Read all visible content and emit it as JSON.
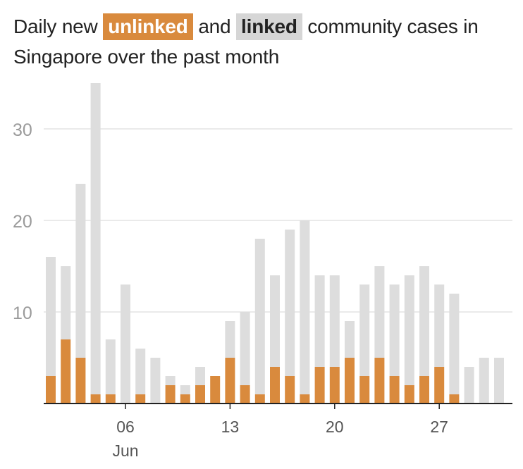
{
  "title": {
    "part1": "Daily new",
    "unlinked_tag": "unlinked",
    "part2": "and",
    "linked_tag": "linked",
    "part3": "community cases in Singapore over the past month"
  },
  "colors": {
    "unlinked": "#d98a3d",
    "linked": "#dddddd",
    "grid": "#e3e3e3",
    "axis": "#222222",
    "tick_text": "#9a9a9a",
    "x_text": "#555555"
  },
  "chart_data": {
    "type": "bar",
    "stacked": true,
    "title": "Daily new unlinked and linked community cases in Singapore over the past month",
    "x": [
      "2021-06-01",
      "2021-06-02",
      "2021-06-03",
      "2021-06-04",
      "2021-06-05",
      "2021-06-06",
      "2021-06-07",
      "2021-06-08",
      "2021-06-09",
      "2021-06-10",
      "2021-06-11",
      "2021-06-12",
      "2021-06-13",
      "2021-06-14",
      "2021-06-15",
      "2021-06-16",
      "2021-06-17",
      "2021-06-18",
      "2021-06-19",
      "2021-06-20",
      "2021-06-21",
      "2021-06-22",
      "2021-06-23",
      "2021-06-24",
      "2021-06-25",
      "2021-06-26",
      "2021-06-27",
      "2021-06-28",
      "2021-06-29",
      "2021-06-30",
      "2021-07-01"
    ],
    "series": [
      {
        "name": "unlinked",
        "values": [
          3,
          7,
          5,
          1,
          1,
          0,
          1,
          0,
          2,
          1,
          2,
          3,
          5,
          2,
          1,
          4,
          3,
          1,
          4,
          4,
          5,
          3,
          5,
          3,
          2,
          3,
          4,
          1,
          0,
          0,
          0
        ]
      },
      {
        "name": "linked",
        "values": [
          13,
          8,
          19,
          34,
          6,
          13,
          5,
          5,
          1,
          1,
          2,
          0,
          4,
          8,
          17,
          10,
          16,
          19,
          10,
          10,
          4,
          10,
          10,
          10,
          12,
          12,
          9,
          11,
          4,
          5,
          5
        ]
      }
    ],
    "ylim": [
      0,
      35
    ],
    "yticks": [
      10,
      20,
      30
    ],
    "xticks": [
      {
        "date": "2021-06-06",
        "label": "06",
        "sublabel": "Jun"
      },
      {
        "date": "2021-06-13",
        "label": "13"
      },
      {
        "date": "2021-06-20",
        "label": "20"
      },
      {
        "date": "2021-06-27",
        "label": "27"
      }
    ],
    "xlabel": "",
    "ylabel": "",
    "grid": true,
    "legend": "inline in title"
  }
}
